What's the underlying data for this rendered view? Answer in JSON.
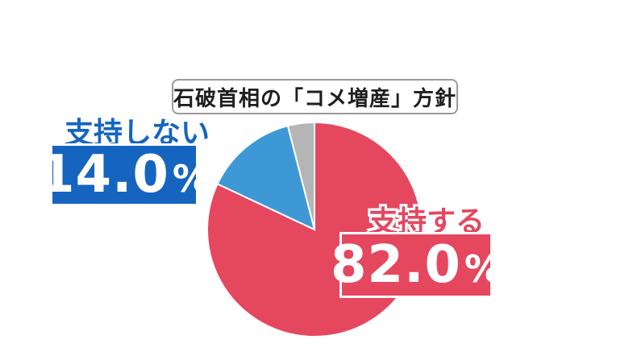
{
  "chart_data": {
    "type": "pie",
    "title": "石破首相の「コメ増産」方針",
    "slices": [
      {
        "name": "支持する",
        "value": 82.0,
        "display_value": "82.0",
        "unit": "%",
        "color": "#e5475f"
      },
      {
        "name": "支持しない",
        "value": 14.0,
        "display_value": "14.0",
        "unit": "%",
        "color": "#3f98d6"
      },
      {
        "name": "",
        "value": 4.0,
        "color": "#b5b5b5"
      }
    ],
    "start": "top, clockwise",
    "label_colors": {
      "支持する": "#e5475f",
      "支持しない": "#1565c0"
    },
    "box_colors": {
      "支持する": "#e5475f",
      "支持しない": "#1565c0"
    }
  }
}
